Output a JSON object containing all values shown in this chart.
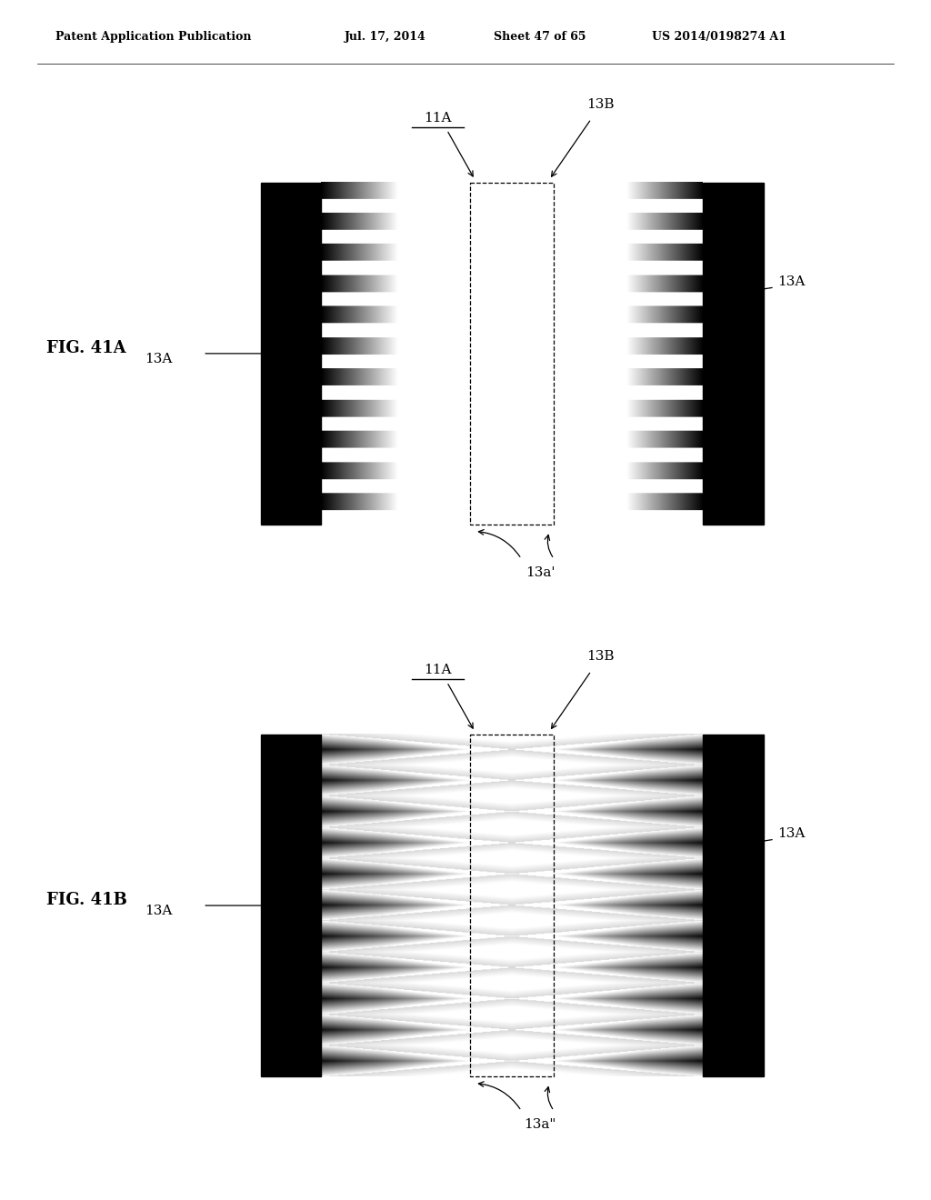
{
  "bg_color": "#ffffff",
  "header_text": "Patent Application Publication",
  "header_date": "Jul. 17, 2014",
  "header_sheet": "Sheet 47 of 65",
  "header_patent": "US 2014/0198274 A1",
  "fig41A_label": "FIG. 41A",
  "fig41B_label": "FIG. 41B",
  "label_11A": "11A",
  "label_13A": "13A",
  "label_13B": "13B",
  "label_13a_prime": "13a'",
  "label_13a_dprime": "13a\""
}
